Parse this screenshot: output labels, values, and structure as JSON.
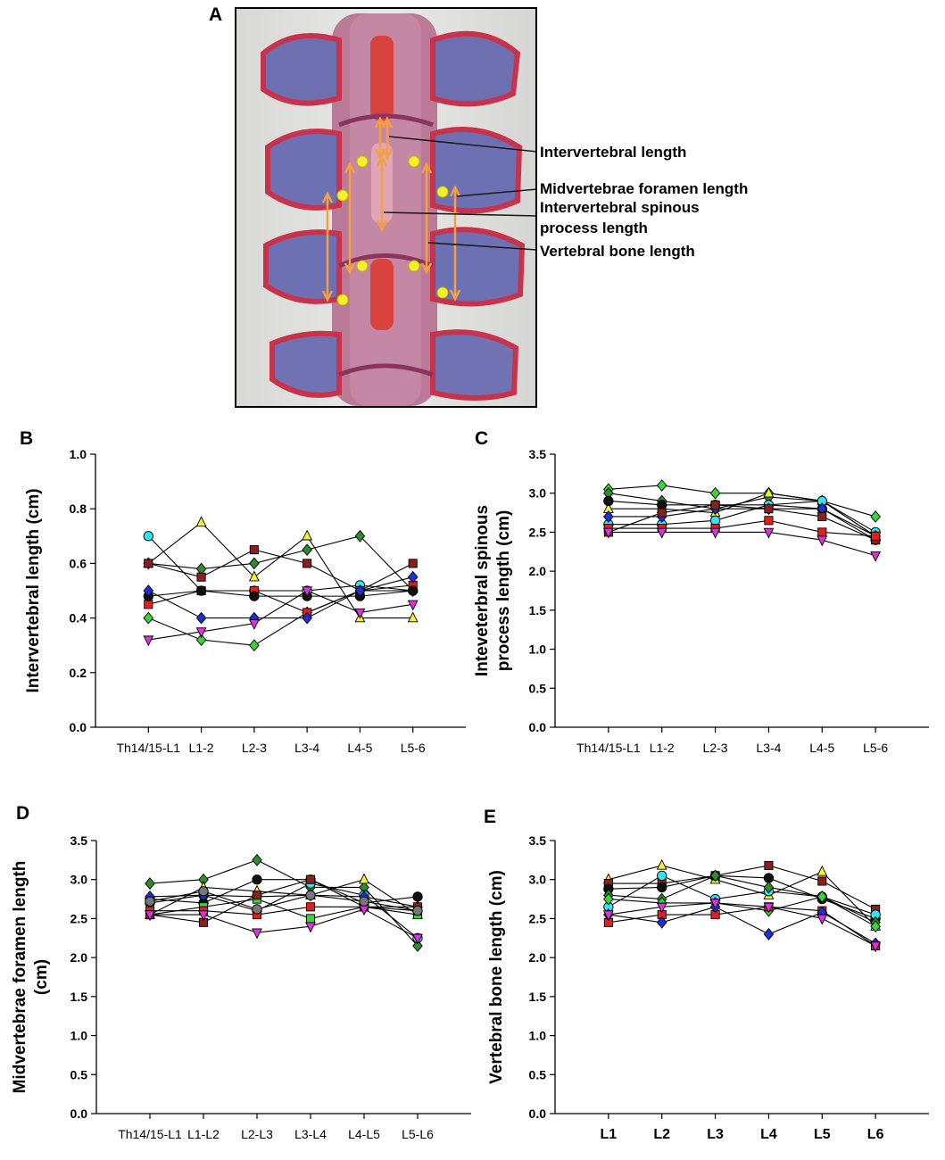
{
  "photo": {
    "letter": "A",
    "labels": [
      "Intervertebral length",
      "Midvertebrae foramen length",
      "Intervertebral spinous",
      "process length",
      "Vertebral bone length"
    ]
  },
  "colors": {
    "cyan": "#33e5f2",
    "yellow": "#f2f236",
    "darkred": "#8a1f1f",
    "green": "#3ad43a",
    "darkgreen": "#2e8b2e",
    "red": "#e02020",
    "black": "#111111",
    "blue": "#1f2fd8",
    "magenta": "#e030e0",
    "gray": "#777777"
  },
  "chart_data": [
    {
      "id": "B",
      "type": "line",
      "ylabel": [
        "Intervertebral length (cm)"
      ],
      "ylim": [
        0,
        1.0
      ],
      "yticks": [
        0.0,
        0.2,
        0.4,
        0.6,
        0.8,
        1.0
      ],
      "ytick_decimals": 1,
      "categories": [
        "Th14/15-L1",
        "L1-2",
        "L2-3",
        "L3-4",
        "L4-5",
        "L5-6"
      ],
      "bold_categories": false,
      "series": [
        {
          "name": "cyan",
          "marker": "circle",
          "color": "#33e5f2",
          "values": [
            0.7,
            0.5,
            0.5,
            0.5,
            0.52,
            0.5
          ]
        },
        {
          "name": "yellow",
          "marker": "triangle",
          "color": "#f2f236",
          "values": [
            0.6,
            0.75,
            0.55,
            0.7,
            0.4,
            0.4
          ]
        },
        {
          "name": "green",
          "marker": "diamond",
          "color": "#3ad43a",
          "values": [
            0.4,
            0.32,
            0.3,
            0.42,
            0.5,
            0.5
          ]
        },
        {
          "name": "darkgreen",
          "marker": "diamond",
          "color": "#2e8b2e",
          "values": [
            0.6,
            0.58,
            0.6,
            0.65,
            0.7,
            0.5
          ]
        },
        {
          "name": "darkred",
          "marker": "square",
          "color": "#8a1f1f",
          "values": [
            0.6,
            0.55,
            0.65,
            0.6,
            0.5,
            0.6
          ]
        },
        {
          "name": "red",
          "marker": "square",
          "color": "#e02020",
          "values": [
            0.45,
            0.5,
            0.5,
            0.42,
            0.5,
            0.52
          ]
        },
        {
          "name": "black",
          "marker": "circle",
          "color": "#111111",
          "values": [
            0.48,
            0.5,
            0.48,
            0.48,
            0.48,
            0.5
          ]
        },
        {
          "name": "blue",
          "marker": "diamond",
          "color": "#1f2fd8",
          "values": [
            0.5,
            0.4,
            0.4,
            0.4,
            0.5,
            0.55
          ]
        },
        {
          "name": "magenta",
          "marker": "triangle-down",
          "color": "#e030e0",
          "values": [
            0.32,
            0.35,
            0.38,
            0.5,
            0.42,
            0.45
          ]
        }
      ]
    },
    {
      "id": "C",
      "type": "line",
      "ylabel": [
        "Inteveterbral spinous",
        "process length (cm)"
      ],
      "ylim": [
        0,
        3.5
      ],
      "yticks": [
        0.0,
        0.5,
        1.0,
        1.5,
        2.0,
        2.5,
        3.0,
        3.5
      ],
      "ytick_decimals": 1,
      "categories": [
        "Th14/15-L1",
        "L1-2",
        "L2-3",
        "L3-4",
        "L4-5",
        "L5-6"
      ],
      "bold_categories": false,
      "series": [
        {
          "name": "green",
          "marker": "diamond",
          "color": "#3ad43a",
          "values": [
            3.05,
            3.1,
            3.0,
            3.0,
            2.9,
            2.7
          ]
        },
        {
          "name": "darkgreen",
          "marker": "diamond",
          "color": "#2e8b2e",
          "values": [
            3.0,
            2.9,
            2.8,
            2.95,
            2.9,
            2.45
          ]
        },
        {
          "name": "yellow",
          "marker": "triangle",
          "color": "#f2f236",
          "values": [
            2.8,
            2.8,
            2.75,
            3.0,
            2.9,
            2.45
          ]
        },
        {
          "name": "black",
          "marker": "circle",
          "color": "#111111",
          "values": [
            2.9,
            2.85,
            2.85,
            2.85,
            2.8,
            2.4
          ]
        },
        {
          "name": "cyan",
          "marker": "circle",
          "color": "#33e5f2",
          "values": [
            2.6,
            2.6,
            2.65,
            2.85,
            2.9,
            2.5
          ]
        },
        {
          "name": "blue",
          "marker": "diamond",
          "color": "#1f2fd8",
          "values": [
            2.7,
            2.7,
            2.8,
            2.8,
            2.8,
            2.45
          ]
        },
        {
          "name": "darkred",
          "marker": "square",
          "color": "#8a1f1f",
          "values": [
            2.5,
            2.75,
            2.85,
            2.8,
            2.7,
            2.4
          ]
        },
        {
          "name": "red",
          "marker": "square",
          "color": "#e02020",
          "values": [
            2.55,
            2.55,
            2.55,
            2.65,
            2.5,
            2.45
          ]
        },
        {
          "name": "magenta",
          "marker": "triangle-down",
          "color": "#e030e0",
          "values": [
            2.5,
            2.5,
            2.5,
            2.5,
            2.4,
            2.2
          ]
        }
      ]
    },
    {
      "id": "D",
      "type": "line",
      "ylabel": [
        "Midvertebrae foramen length",
        "(cm)"
      ],
      "ylim": [
        0,
        3.5
      ],
      "yticks": [
        0.0,
        0.5,
        1.0,
        1.5,
        2.0,
        2.5,
        3.0,
        3.5
      ],
      "ytick_decimals": 1,
      "categories": [
        "Th14/15-L1",
        "L1-L2",
        "L2-L3",
        "L3-L4",
        "L4-L5",
        "L5-L6"
      ],
      "bold_categories": false,
      "series": [
        {
          "name": "darkgreen",
          "marker": "diamond",
          "color": "#2e8b2e",
          "values": [
            2.95,
            3.0,
            3.25,
            2.9,
            2.9,
            2.15
          ]
        },
        {
          "name": "yellow",
          "marker": "triangle",
          "color": "#f2f236",
          "values": [
            2.55,
            2.9,
            2.85,
            2.8,
            3.0,
            2.55
          ]
        },
        {
          "name": "black",
          "marker": "circle",
          "color": "#111111",
          "values": [
            2.75,
            2.7,
            3.0,
            3.0,
            2.7,
            2.78
          ]
        },
        {
          "name": "cyan",
          "marker": "circle",
          "color": "#33e5f2",
          "values": [
            2.7,
            2.8,
            2.6,
            2.95,
            2.8,
            2.25
          ]
        },
        {
          "name": "blue",
          "marker": "diamond",
          "color": "#1f2fd8",
          "values": [
            2.78,
            2.8,
            2.78,
            2.8,
            2.78,
            2.65
          ]
        },
        {
          "name": "green",
          "marker": "square",
          "color": "#3ad43a",
          "values": [
            2.55,
            2.65,
            2.75,
            2.5,
            2.65,
            2.55
          ]
        },
        {
          "name": "red",
          "marker": "square",
          "color": "#e02020",
          "values": [
            2.6,
            2.6,
            2.55,
            2.65,
            2.65,
            2.6
          ]
        },
        {
          "name": "darkred",
          "marker": "square",
          "color": "#8a1f1f",
          "values": [
            2.55,
            2.45,
            2.8,
            3.0,
            2.65,
            2.65
          ]
        },
        {
          "name": "magenta",
          "marker": "triangle-down",
          "color": "#e030e0",
          "values": [
            2.55,
            2.55,
            2.32,
            2.4,
            2.62,
            2.25
          ]
        },
        {
          "name": "gray",
          "marker": "circle",
          "color": "#777777",
          "values": [
            2.72,
            2.85,
            2.62,
            2.8,
            2.72,
            2.6
          ]
        }
      ]
    },
    {
      "id": "E",
      "type": "line",
      "ylabel": [
        "Vertebral bone length (cm)"
      ],
      "ylim": [
        0,
        3.5
      ],
      "yticks": [
        0.0,
        0.5,
        1.0,
        1.5,
        2.0,
        2.5,
        3.0,
        3.5
      ],
      "ytick_decimals": 1,
      "categories": [
        "L1",
        "L2",
        "L3",
        "L4",
        "L5",
        "L6"
      ],
      "bold_categories": true,
      "series": [
        {
          "name": "yellow",
          "marker": "triangle",
          "color": "#f2f236",
          "values": [
            3.0,
            3.18,
            3.0,
            2.8,
            3.1,
            2.4
          ]
        },
        {
          "name": "darkred",
          "marker": "square",
          "color": "#8a1f1f",
          "values": [
            2.95,
            2.95,
            3.05,
            3.18,
            2.98,
            2.62
          ]
        },
        {
          "name": "black",
          "marker": "circle",
          "color": "#111111",
          "values": [
            2.88,
            2.9,
            3.05,
            3.02,
            2.75,
            2.5
          ]
        },
        {
          "name": "cyan",
          "marker": "circle",
          "color": "#33e5f2",
          "values": [
            2.65,
            3.05,
            2.75,
            2.85,
            2.78,
            2.55
          ]
        },
        {
          "name": "darkgreen",
          "marker": "diamond",
          "color": "#2e8b2e",
          "values": [
            2.8,
            2.75,
            3.05,
            2.9,
            2.78,
            2.45
          ]
        },
        {
          "name": "green",
          "marker": "diamond",
          "color": "#3ad43a",
          "values": [
            2.75,
            2.7,
            2.7,
            2.6,
            2.78,
            2.4
          ]
        },
        {
          "name": "red",
          "marker": "square",
          "color": "#e02020",
          "values": [
            2.45,
            2.55,
            2.55,
            2.65,
            2.6,
            2.15
          ]
        },
        {
          "name": "blue",
          "marker": "diamond",
          "color": "#1f2fd8",
          "values": [
            2.55,
            2.45,
            2.65,
            2.3,
            2.58,
            2.18
          ]
        },
        {
          "name": "magenta",
          "marker": "triangle-down",
          "color": "#e030e0",
          "values": [
            2.55,
            2.65,
            2.7,
            2.65,
            2.5,
            2.15
          ]
        }
      ]
    }
  ]
}
